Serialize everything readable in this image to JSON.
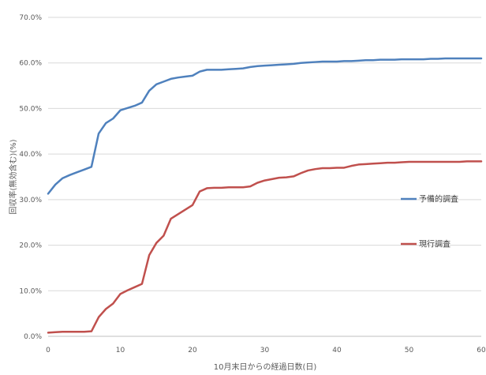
{
  "chart_data": {
    "type": "line",
    "title": "",
    "xlabel": "10月末日からの経過日数(日)",
    "ylabel": "回収率(無効含む)(%)",
    "xlim": [
      0,
      60
    ],
    "ylim": [
      0,
      70
    ],
    "x_ticks": [
      0,
      10,
      20,
      30,
      40,
      50,
      60
    ],
    "y_ticks": [
      0,
      10,
      20,
      30,
      40,
      50,
      60,
      70
    ],
    "y_tick_labels": [
      "0.0%",
      "10.0%",
      "20.0%",
      "30.0%",
      "40.0%",
      "50.0%",
      "60.0%",
      "70.0%"
    ],
    "grid": "horizontal",
    "legend_position": "right",
    "series": [
      {
        "name": "予備的調査",
        "color": "#4f81bd",
        "x": [
          0,
          1,
          2,
          3,
          4,
          5,
          6,
          7,
          8,
          9,
          10,
          11,
          12,
          13,
          14,
          15,
          16,
          17,
          18,
          19,
          20,
          21,
          22,
          23,
          24,
          25,
          26,
          27,
          28,
          29,
          30,
          31,
          32,
          33,
          34,
          35,
          36,
          37,
          38,
          39,
          40,
          41,
          42,
          43,
          44,
          45,
          46,
          47,
          48,
          49,
          50,
          51,
          52,
          53,
          54,
          55,
          56,
          57,
          58,
          59,
          60
        ],
        "values": [
          31.3,
          33.3,
          34.7,
          35.4,
          36.0,
          36.6,
          37.2,
          44.5,
          46.8,
          47.8,
          49.6,
          50.1,
          50.6,
          51.3,
          53.9,
          55.3,
          55.9,
          56.5,
          56.8,
          57.0,
          57.2,
          58.1,
          58.5,
          58.5,
          58.5,
          58.6,
          58.7,
          58.8,
          59.1,
          59.3,
          59.4,
          59.5,
          59.6,
          59.7,
          59.8,
          60.0,
          60.1,
          60.2,
          60.3,
          60.3,
          60.3,
          60.4,
          60.4,
          60.5,
          60.6,
          60.6,
          60.7,
          60.7,
          60.7,
          60.8,
          60.8,
          60.8,
          60.8,
          60.9,
          60.9,
          61.0,
          61.0,
          61.0,
          61.0,
          61.0,
          61.0
        ]
      },
      {
        "name": "現行調査",
        "color": "#c0504d",
        "x": [
          0,
          1,
          2,
          3,
          4,
          5,
          6,
          7,
          8,
          9,
          10,
          11,
          12,
          13,
          14,
          15,
          16,
          17,
          18,
          19,
          20,
          21,
          22,
          23,
          24,
          25,
          26,
          27,
          28,
          29,
          30,
          31,
          32,
          33,
          34,
          35,
          36,
          37,
          38,
          39,
          40,
          41,
          42,
          43,
          44,
          45,
          46,
          47,
          48,
          49,
          50,
          51,
          52,
          53,
          54,
          55,
          56,
          57,
          58,
          59,
          60
        ],
        "values": [
          0.8,
          0.9,
          1.0,
          1.0,
          1.0,
          1.0,
          1.1,
          4.2,
          6.0,
          7.2,
          9.3,
          10.1,
          10.8,
          11.5,
          17.8,
          20.5,
          22.1,
          25.8,
          26.8,
          27.8,
          28.8,
          31.8,
          32.5,
          32.6,
          32.6,
          32.7,
          32.7,
          32.7,
          32.9,
          33.7,
          34.2,
          34.5,
          34.8,
          34.9,
          35.1,
          35.8,
          36.4,
          36.7,
          36.9,
          36.9,
          37.0,
          37.0,
          37.4,
          37.7,
          37.8,
          37.9,
          38.0,
          38.1,
          38.1,
          38.2,
          38.3,
          38.3,
          38.3,
          38.3,
          38.3,
          38.3,
          38.3,
          38.3,
          38.4,
          38.4,
          38.4
        ]
      }
    ]
  }
}
